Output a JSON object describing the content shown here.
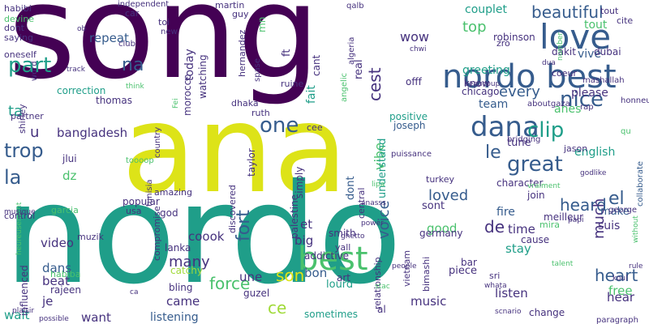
{
  "palette": {
    "purple": "#440154",
    "indigo": "#46327e",
    "blue": "#365c8d",
    "slate": "#2a788e",
    "teal": "#1f9e89",
    "green": "#4ac16d",
    "lime": "#a0da39",
    "yellow": "#dde318"
  },
  "words": [
    {
      "text": "song",
      "size": 160,
      "color": "purple"
    },
    {
      "text": "ana",
      "size": 150,
      "color": "yellow"
    },
    {
      "text": "nordo",
      "size": 170,
      "color": "teal"
    },
    {
      "text": "nordo best",
      "size": 40,
      "color": "blue"
    },
    {
      "text": "love",
      "size": 42,
      "color": "blue"
    },
    {
      "text": "best",
      "size": 40,
      "color": "green"
    },
    {
      "text": "dana",
      "size": 34,
      "color": "blue"
    },
    {
      "text": "great",
      "size": 26,
      "color": "blue"
    },
    {
      "text": "clip",
      "size": 26,
      "color": "teal"
    },
    {
      "text": "nice",
      "size": 26,
      "color": "blue"
    },
    {
      "text": "one",
      "size": 26,
      "color": "blue"
    },
    {
      "text": "part",
      "size": 26,
      "color": "teal"
    },
    {
      "text": "beautiful",
      "size": 20,
      "color": "blue"
    },
    {
      "text": "every",
      "size": 18,
      "color": "blue"
    },
    {
      "text": "trop",
      "size": 24,
      "color": "blue"
    },
    {
      "text": "la",
      "size": 24,
      "color": "blue"
    },
    {
      "text": "le",
      "size": 22,
      "color": "blue"
    },
    {
      "text": "el",
      "size": 22,
      "color": "blue"
    },
    {
      "text": "na",
      "size": 22,
      "color": "blue"
    },
    {
      "text": "fort",
      "size": 22,
      "color": "blue"
    },
    {
      "text": "cest",
      "size": 20,
      "color": "indigo"
    },
    {
      "text": "heard",
      "size": 20,
      "color": "blue"
    },
    {
      "text": "heart",
      "size": 20,
      "color": "blue"
    },
    {
      "text": "force",
      "size": 20,
      "color": "green"
    },
    {
      "text": "de",
      "size": 20,
      "color": "indigo"
    },
    {
      "text": "son",
      "size": 20,
      "color": "yellow"
    },
    {
      "text": "ce",
      "size": 20,
      "color": "lime"
    },
    {
      "text": "much",
      "size": 18,
      "color": "indigo"
    },
    {
      "text": "many",
      "size": 18,
      "color": "indigo"
    },
    {
      "text": "vibe",
      "size": 16,
      "color": "green"
    },
    {
      "text": "loved",
      "size": 18,
      "color": "blue"
    },
    {
      "text": "voice",
      "size": 18,
      "color": "blue"
    },
    {
      "text": "top",
      "size": 18,
      "color": "green"
    },
    {
      "text": "wow",
      "size": 16,
      "color": "indigo"
    },
    {
      "text": "repeat",
      "size": 15,
      "color": "blue"
    },
    {
      "text": "bangladesh",
      "size": 15,
      "color": "indigo"
    },
    {
      "text": "u",
      "size": 18,
      "color": "indigo"
    },
    {
      "text": "ta",
      "size": 18,
      "color": "teal"
    },
    {
      "text": "dz",
      "size": 15,
      "color": "green"
    },
    {
      "text": "video",
      "size": 15,
      "color": "indigo"
    },
    {
      "text": "dans",
      "size": 15,
      "color": "blue"
    },
    {
      "text": "beat",
      "size": 15,
      "color": "indigo"
    },
    {
      "text": "je",
      "size": 15,
      "color": "indigo"
    },
    {
      "text": "wait",
      "size": 15,
      "color": "teal"
    },
    {
      "text": "want",
      "size": 15,
      "color": "indigo"
    },
    {
      "text": "came",
      "size": 15,
      "color": "indigo"
    },
    {
      "text": "listening",
      "size": 14,
      "color": "blue"
    },
    {
      "text": "coook",
      "size": 15,
      "color": "indigo"
    },
    {
      "text": "et",
      "size": 15,
      "color": "indigo"
    },
    {
      "text": "bon",
      "size": 15,
      "color": "blue"
    },
    {
      "text": "une",
      "size": 15,
      "color": "indigo"
    },
    {
      "text": "big",
      "size": 15,
      "color": "indigo"
    },
    {
      "text": "good",
      "size": 15,
      "color": "green"
    },
    {
      "text": "time",
      "size": 15,
      "color": "indigo"
    },
    {
      "text": "stay",
      "size": 15,
      "color": "teal"
    },
    {
      "text": "hear",
      "size": 15,
      "color": "indigo"
    },
    {
      "text": "free",
      "size": 15,
      "color": "green"
    },
    {
      "text": "listen",
      "size": 15,
      "color": "indigo"
    },
    {
      "text": "music",
      "size": 15,
      "color": "indigo"
    },
    {
      "text": "english",
      "size": 14,
      "color": "teal"
    },
    {
      "text": "team",
      "size": 14,
      "color": "blue"
    },
    {
      "text": "anes",
      "size": 14,
      "color": "green"
    },
    {
      "text": "please",
      "size": 14,
      "color": "indigo"
    },
    {
      "text": "tout",
      "size": 14,
      "color": "green"
    },
    {
      "text": "vive",
      "size": 14,
      "color": "blue"
    },
    {
      "text": "couplet",
      "size": 14,
      "color": "teal"
    },
    {
      "text": "greeting",
      "size": 14,
      "color": "teal"
    },
    {
      "text": "tune",
      "size": 13,
      "color": "indigo"
    },
    {
      "text": "make",
      "size": 13,
      "color": "blue"
    },
    {
      "text": "suis",
      "size": 14,
      "color": "indigo"
    },
    {
      "text": "fire",
      "size": 14,
      "color": "blue"
    },
    {
      "text": "sont",
      "size": 13,
      "color": "indigo"
    },
    {
      "text": "understand",
      "size": 13,
      "color": "teal"
    },
    {
      "text": "dont",
      "size": 13,
      "color": "blue"
    },
    {
      "text": "fait",
      "size": 14,
      "color": "teal"
    },
    {
      "text": "cant",
      "size": 12,
      "color": "indigo"
    },
    {
      "text": "real",
      "size": 13,
      "color": "indigo"
    },
    {
      "text": "ft",
      "size": 13,
      "color": "indigo"
    },
    {
      "text": "today",
      "size": 14,
      "color": "indigo"
    },
    {
      "text": "morocco",
      "size": 12,
      "color": "indigo"
    },
    {
      "text": "watching",
      "size": 12,
      "color": "indigo"
    },
    {
      "text": "correction",
      "size": 12,
      "color": "teal"
    },
    {
      "text": "thomas",
      "size": 12,
      "color": "indigo"
    },
    {
      "text": "partner",
      "size": 11,
      "color": "indigo"
    },
    {
      "text": "jlui",
      "size": 12,
      "color": "indigo"
    },
    {
      "text": "god",
      "size": 12,
      "color": "indigo"
    },
    {
      "text": "amazing",
      "size": 11,
      "color": "indigo"
    },
    {
      "text": "popular",
      "size": 12,
      "color": "indigo"
    },
    {
      "text": "usa",
      "size": 11,
      "color": "indigo"
    },
    {
      "text": "lanka",
      "size": 12,
      "color": "indigo"
    },
    {
      "text": "catchy",
      "size": 12,
      "color": "lime"
    },
    {
      "text": "bling",
      "size": 12,
      "color": "indigo"
    },
    {
      "text": "guzel",
      "size": 12,
      "color": "indigo"
    },
    {
      "text": "art",
      "size": 12,
      "color": "indigo"
    },
    {
      "text": "lourd",
      "size": 13,
      "color": "teal"
    },
    {
      "text": "sometimes",
      "size": 12,
      "color": "teal"
    },
    {
      "text": "piece",
      "size": 13,
      "color": "indigo"
    },
    {
      "text": "cause",
      "size": 12,
      "color": "indigo"
    },
    {
      "text": "change",
      "size": 12,
      "color": "indigo"
    },
    {
      "text": "germany",
      "size": 12,
      "color": "indigo"
    },
    {
      "text": "smith",
      "size": 12,
      "color": "indigo"
    },
    {
      "text": "join",
      "size": 12,
      "color": "indigo"
    },
    {
      "text": "mira",
      "size": 11,
      "color": "green"
    },
    {
      "text": "meilleur",
      "size": 12,
      "color": "indigo"
    },
    {
      "text": "character",
      "size": 12,
      "color": "indigo"
    },
    {
      "text": "jason",
      "size": 11,
      "color": "indigo"
    },
    {
      "text": "positive",
      "size": 12,
      "color": "teal"
    },
    {
      "text": "joseph",
      "size": 12,
      "color": "blue"
    },
    {
      "text": "chicago",
      "size": 12,
      "color": "indigo"
    },
    {
      "text": "know",
      "size": 12,
      "color": "indigo"
    },
    {
      "text": "offf",
      "size": 12,
      "color": "indigo"
    },
    {
      "text": "robinson",
      "size": 12,
      "color": "indigo"
    },
    {
      "text": "dubai",
      "size": 12,
      "color": "indigo"
    },
    {
      "text": "dakit",
      "size": 12,
      "color": "indigo"
    },
    {
      "text": "zro",
      "size": 11,
      "color": "indigo"
    },
    {
      "text": "tout",
      "size": 11,
      "color": "indigo"
    },
    {
      "text": "cite",
      "size": 11,
      "color": "indigo"
    },
    {
      "text": "coeur",
      "size": 11,
      "color": "indigo"
    },
    {
      "text": "mashallah",
      "size": 10,
      "color": "indigo"
    },
    {
      "text": "honneur",
      "size": 10,
      "color": "indigo"
    },
    {
      "text": "rap",
      "size": 10,
      "color": "indigo"
    },
    {
      "text": "aboutgaza",
      "size": 10,
      "color": "indigo"
    },
    {
      "text": "bridging",
      "size": 10,
      "color": "indigo"
    },
    {
      "text": "qu",
      "size": 10,
      "color": "green"
    },
    {
      "text": "puissance",
      "size": 10,
      "color": "indigo"
    },
    {
      "text": "vraiment",
      "size": 9,
      "color": "green"
    },
    {
      "text": "godlike",
      "size": 9,
      "color": "indigo"
    },
    {
      "text": "collaborate",
      "size": 10,
      "color": "blue"
    },
    {
      "text": "george",
      "size": 10,
      "color": "indigo"
    },
    {
      "text": "without",
      "size": 9,
      "color": "green"
    },
    {
      "text": "rule",
      "size": 9,
      "color": "indigo"
    },
    {
      "text": "koul",
      "size": 9,
      "color": "indigo"
    },
    {
      "text": "paragraph",
      "size": 10,
      "color": "indigo"
    },
    {
      "text": "papi",
      "size": 9,
      "color": "indigo"
    },
    {
      "text": "talent",
      "size": 9,
      "color": "green"
    },
    {
      "text": "whata",
      "size": 9,
      "color": "indigo"
    },
    {
      "text": "scnario",
      "size": 9,
      "color": "indigo"
    },
    {
      "text": "sri",
      "size": 11,
      "color": "indigo"
    },
    {
      "text": "bar",
      "size": 12,
      "color": "indigo"
    },
    {
      "text": "bimashi",
      "size": 11,
      "color": "indigo"
    },
    {
      "text": "vietnam",
      "size": 11,
      "color": "indigo"
    },
    {
      "text": "relationship",
      "size": 11,
      "color": "indigo"
    },
    {
      "text": "addictive",
      "size": 12,
      "color": "indigo"
    },
    {
      "text": "yall",
      "size": 11,
      "color": "indigo"
    },
    {
      "text": "al",
      "size": 12,
      "color": "indigo"
    },
    {
      "text": "people",
      "size": 9,
      "color": "indigo"
    },
    {
      "text": "ghetto",
      "size": 9,
      "color": "indigo"
    },
    {
      "text": "turkey",
      "size": 11,
      "color": "indigo"
    },
    {
      "text": "central",
      "size": 11,
      "color": "indigo"
    },
    {
      "text": "anasss",
      "size": 9,
      "color": "indigo"
    },
    {
      "text": "lipa",
      "size": 9,
      "color": "green"
    },
    {
      "text": "power",
      "size": 9,
      "color": "indigo"
    },
    {
      "text": "palestine",
      "size": 12,
      "color": "indigo"
    },
    {
      "text": "simply",
      "size": 12,
      "color": "indigo"
    },
    {
      "text": "taylor",
      "size": 12,
      "color": "indigo"
    },
    {
      "text": "discovered",
      "size": 11,
      "color": "indigo"
    },
    {
      "text": "compromise",
      "size": 11,
      "color": "indigo"
    },
    {
      "text": "country",
      "size": 10,
      "color": "indigo"
    },
    {
      "text": "tunisia",
      "size": 10,
      "color": "indigo"
    },
    {
      "text": "ruth",
      "size": 11,
      "color": "indigo"
    },
    {
      "text": "dhaka",
      "size": 11,
      "color": "indigo"
    },
    {
      "text": "cee",
      "size": 11,
      "color": "indigo"
    },
    {
      "text": "stac",
      "size": 9,
      "color": "green"
    },
    {
      "text": "plaisir",
      "size": 9,
      "color": "indigo"
    },
    {
      "text": "ca",
      "size": 9,
      "color": "indigo"
    },
    {
      "text": "possible",
      "size": 9,
      "color": "indigo"
    },
    {
      "text": "heureusement",
      "size": 9,
      "color": "green"
    },
    {
      "text": "musique",
      "size": 9,
      "color": "indigo"
    },
    {
      "text": "rajeen",
      "size": 12,
      "color": "indigo"
    },
    {
      "text": "habiba",
      "size": 11,
      "color": "green"
    },
    {
      "text": "influenced",
      "size": 12,
      "color": "indigo"
    },
    {
      "text": "muzik",
      "size": 11,
      "color": "indigo"
    },
    {
      "text": "control",
      "size": 11,
      "color": "indigo"
    },
    {
      "text": "garcia",
      "size": 11,
      "color": "green"
    },
    {
      "text": "shirley",
      "size": 11,
      "color": "indigo"
    },
    {
      "text": "toooop",
      "size": 10,
      "color": "green"
    },
    {
      "text": "think",
      "size": 9,
      "color": "green"
    },
    {
      "text": "track",
      "size": 9,
      "color": "indigo"
    },
    {
      "text": "oneself",
      "size": 11,
      "color": "indigo"
    },
    {
      "text": "word",
      "size": 10,
      "color": "indigo"
    },
    {
      "text": "saying",
      "size": 11,
      "color": "indigo"
    },
    {
      "text": "dont",
      "size": 11,
      "color": "indigo"
    },
    {
      "text": "devine",
      "size": 11,
      "color": "green"
    },
    {
      "text": "habibi",
      "size": 11,
      "color": "indigo"
    },
    {
      "text": "ob",
      "size": 9,
      "color": "indigo"
    },
    {
      "text": "independent",
      "size": 10,
      "color": "indigo"
    },
    {
      "text": "car",
      "size": 11,
      "color": "indigo"
    },
    {
      "text": "toi",
      "size": 11,
      "color": "indigo"
    },
    {
      "text": "new",
      "size": 10,
      "color": "indigo"
    },
    {
      "text": "club",
      "size": 10,
      "color": "indigo"
    },
    {
      "text": "martin",
      "size": 11,
      "color": "indigo"
    },
    {
      "text": "guy",
      "size": 11,
      "color": "indigo"
    },
    {
      "text": "mn",
      "size": 12,
      "color": "green"
    },
    {
      "text": "hernandez",
      "size": 11,
      "color": "indigo"
    },
    {
      "text": "spase",
      "size": 10,
      "color": "indigo"
    },
    {
      "text": "ruine",
      "size": 11,
      "color": "indigo"
    },
    {
      "text": "algeria",
      "size": 10,
      "color": "indigo"
    },
    {
      "text": "angelic",
      "size": 10,
      "color": "green"
    },
    {
      "text": "qalb",
      "size": 10,
      "color": "indigo"
    },
    {
      "text": "chwi",
      "size": 9,
      "color": "indigo"
    },
    {
      "text": "beaucoup",
      "size": 9,
      "color": "indigo"
    },
    {
      "text": "dua",
      "size": 9,
      "color": "indigo"
    },
    {
      "text": "number",
      "size": 9,
      "color": "green"
    },
    {
      "text": "Fei",
      "size": 9,
      "color": "green"
    }
  ]
}
